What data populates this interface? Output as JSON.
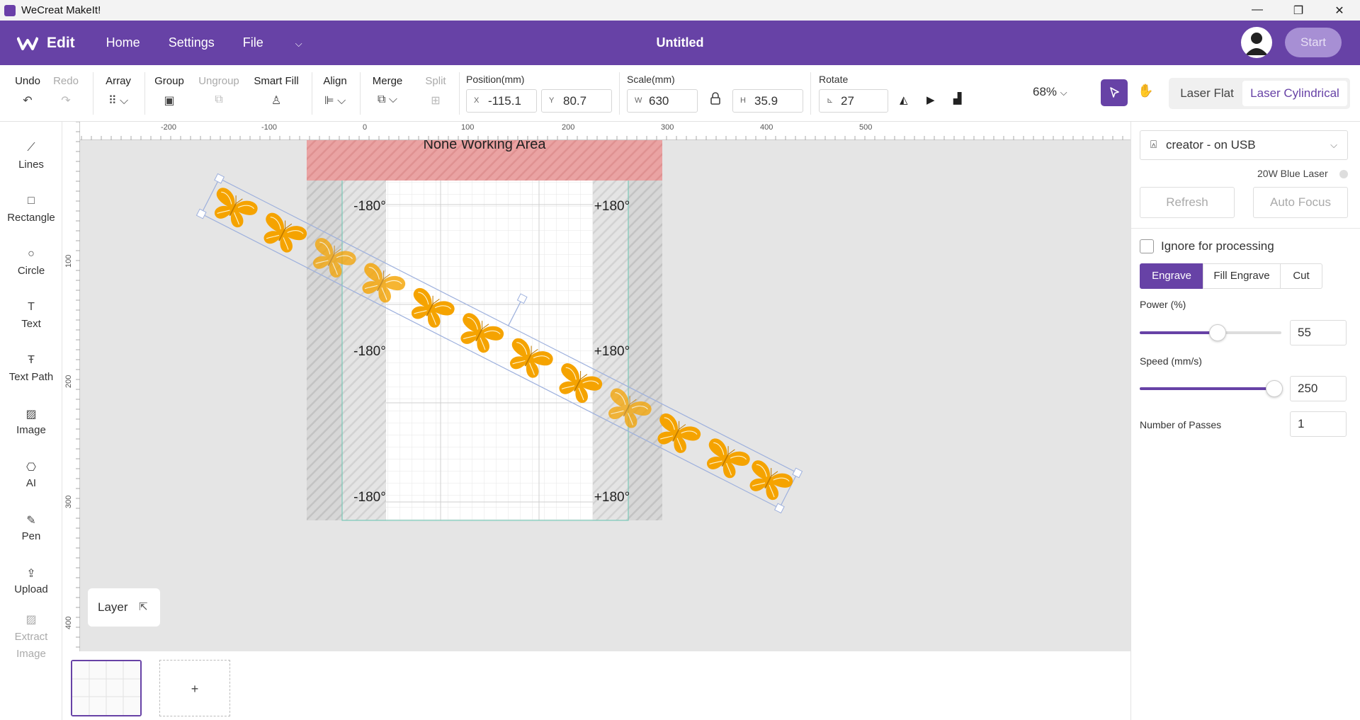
{
  "window": {
    "title": "WeCreat MakeIt!"
  },
  "header": {
    "mode": "Edit",
    "nav": [
      "Home",
      "Settings",
      "File"
    ],
    "doc_title": "Untitled",
    "start_label": "Start"
  },
  "toolbar": {
    "undo": "Undo",
    "redo": "Redo",
    "array": "Array",
    "group": "Group",
    "ungroup": "Ungroup",
    "smart_fill": "Smart Fill",
    "align": "Align",
    "merge": "Merge",
    "split": "Split",
    "position_label": "Position(mm)",
    "x_prefix": "X",
    "x_value": "-115.1",
    "y_prefix": "Y",
    "y_value": "80.7",
    "scale_label": "Scale(mm)",
    "w_prefix": "W",
    "w_value": "630",
    "h_prefix": "H",
    "h_value": "35.9",
    "rotate_label": "Rotate",
    "rotate_value": "27",
    "zoom": "68%",
    "mode_flat": "Laser Flat",
    "mode_cylindrical": "Laser Cylindrical"
  },
  "sidebar": {
    "items": [
      "Lines",
      "Rectangle",
      "Circle",
      "Text",
      "Text Path",
      "Image",
      "AI",
      "Pen",
      "Upload",
      "Extract Image"
    ]
  },
  "canvas": {
    "none_working_area": "None Working Area",
    "angle_left": "-180°",
    "angle_right": "+180°",
    "ruler_top": [
      "-200",
      "-100",
      "0",
      "100",
      "200",
      "300",
      "400",
      "500"
    ],
    "ruler_left": [
      "100",
      "200",
      "300",
      "400"
    ],
    "layer_label": "Layer",
    "add_page": "+"
  },
  "panel": {
    "device": "creator - on USB",
    "laser": "20W Blue Laser",
    "refresh": "Refresh",
    "auto_focus": "Auto Focus",
    "ignore_label": "Ignore for processing",
    "process_tabs": [
      "Engrave",
      "Fill Engrave",
      "Cut"
    ],
    "power_label": "Power (%)",
    "power_value": "55",
    "power_fraction": 0.55,
    "speed_label": "Speed (mm/s)",
    "speed_value": "250",
    "speed_fraction": 0.95,
    "passes_label": "Number of Passes",
    "passes_value": "1"
  },
  "colors": {
    "brand": "#6742a6",
    "butterfly": "#f5a300",
    "no_work_area": "#e9a3a3"
  }
}
